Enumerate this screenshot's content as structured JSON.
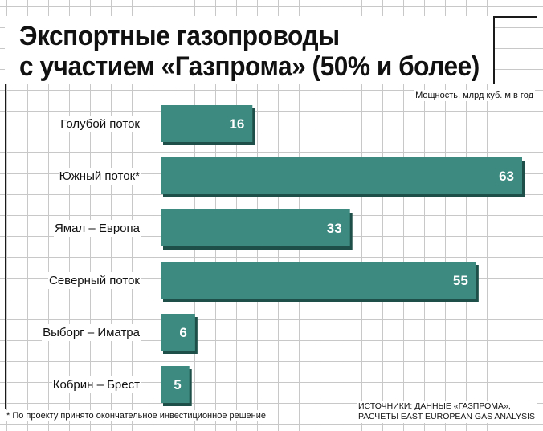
{
  "title_line_1": "Экспортные газопроводы",
  "title_line_2": "с участием «Газпрома» (50% и более)",
  "unit_label": "Мощность, млрд куб. м в год",
  "footnote": "* По проекту принято окончательное инвестиционное решение",
  "sources_line_1": "ИСТОЧНИКИ: ДАННЫЕ «ГАЗПРОМА»,",
  "sources_line_2": "РАСЧЕТЫ EAST EUROPEAN GAS ANALYSIS",
  "colors": {
    "bar": "#3d8a80",
    "bar_shadow": "#1f4f49",
    "grid": "#c8c8c8"
  },
  "chart_data": {
    "type": "bar",
    "orientation": "horizontal",
    "title": "Экспортные газопроводы с участием «Газпрома» (50% и более)",
    "xlabel": "Мощность, млрд куб. м в год",
    "ylabel": "",
    "categories": [
      "Голубой поток",
      "Южный поток*",
      "Ямал – Европа",
      "Северный поток",
      "Выборг – Иматра",
      "Кобрин – Брест"
    ],
    "values": [
      16,
      63,
      33,
      55,
      6,
      5
    ],
    "xlim": [
      0,
      63
    ],
    "grid": true,
    "legend": "none"
  }
}
